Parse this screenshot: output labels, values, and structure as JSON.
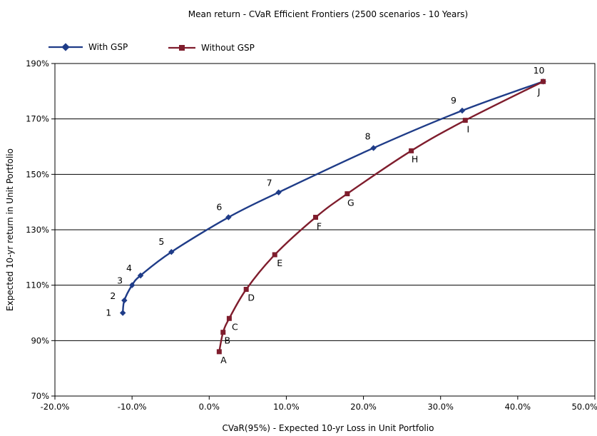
{
  "chart_data": {
    "type": "line",
    "title": "Mean return - CVaR Efficient Frontiers (2500 scenarios - 10 Years)",
    "xlabel": "CVaR(95%) - Expected 10-yr Loss in Unit Portfolio",
    "ylabel": "Expected 10-yr return in Unit Portfolio",
    "xlim": [
      -20,
      50
    ],
    "ylim": [
      70,
      190
    ],
    "x_ticks": [
      "-20.0%",
      "-10.0%",
      "0.0%",
      "10.0%",
      "20.0%",
      "30.0%",
      "40.0%",
      "50.0%"
    ],
    "y_ticks": [
      "70%",
      "90%",
      "110%",
      "130%",
      "150%",
      "170%",
      "190%"
    ],
    "grid": "horizontal",
    "legend_position": "top-left",
    "series": [
      {
        "name": "With GSP",
        "color": "#1f3c88",
        "marker": "diamond",
        "points": [
          {
            "label": "1",
            "x": -11.2,
            "y": 100
          },
          {
            "label": "2",
            "x": -11.0,
            "y": 104.5
          },
          {
            "label": "3",
            "x": -10.0,
            "y": 110
          },
          {
            "label": "4",
            "x": -8.9,
            "y": 113.5
          },
          {
            "label": "5",
            "x": -4.9,
            "y": 122
          },
          {
            "label": "6",
            "x": 2.5,
            "y": 134.5
          },
          {
            "label": "7",
            "x": 9.0,
            "y": 143.5
          },
          {
            "label": "8",
            "x": 21.3,
            "y": 159.5
          },
          {
            "label": "9",
            "x": 32.8,
            "y": 173
          },
          {
            "label": "10",
            "x": 43.3,
            "y": 183.5
          }
        ]
      },
      {
        "name": "Without GSP",
        "color": "#7f1d2d",
        "marker": "square",
        "points": [
          {
            "label": "A",
            "x": 1.3,
            "y": 86
          },
          {
            "label": "B",
            "x": 1.8,
            "y": 93
          },
          {
            "label": "C",
            "x": 2.6,
            "y": 98
          },
          {
            "label": "D",
            "x": 4.8,
            "y": 108.5
          },
          {
            "label": "E",
            "x": 8.5,
            "y": 121
          },
          {
            "label": "F",
            "x": 13.8,
            "y": 134.5
          },
          {
            "label": "G",
            "x": 17.9,
            "y": 143
          },
          {
            "label": "H",
            "x": 26.2,
            "y": 158.5
          },
          {
            "label": "I",
            "x": 33.2,
            "y": 169.5
          },
          {
            "label": "J",
            "x": 43.3,
            "y": 183.5
          }
        ]
      }
    ]
  }
}
